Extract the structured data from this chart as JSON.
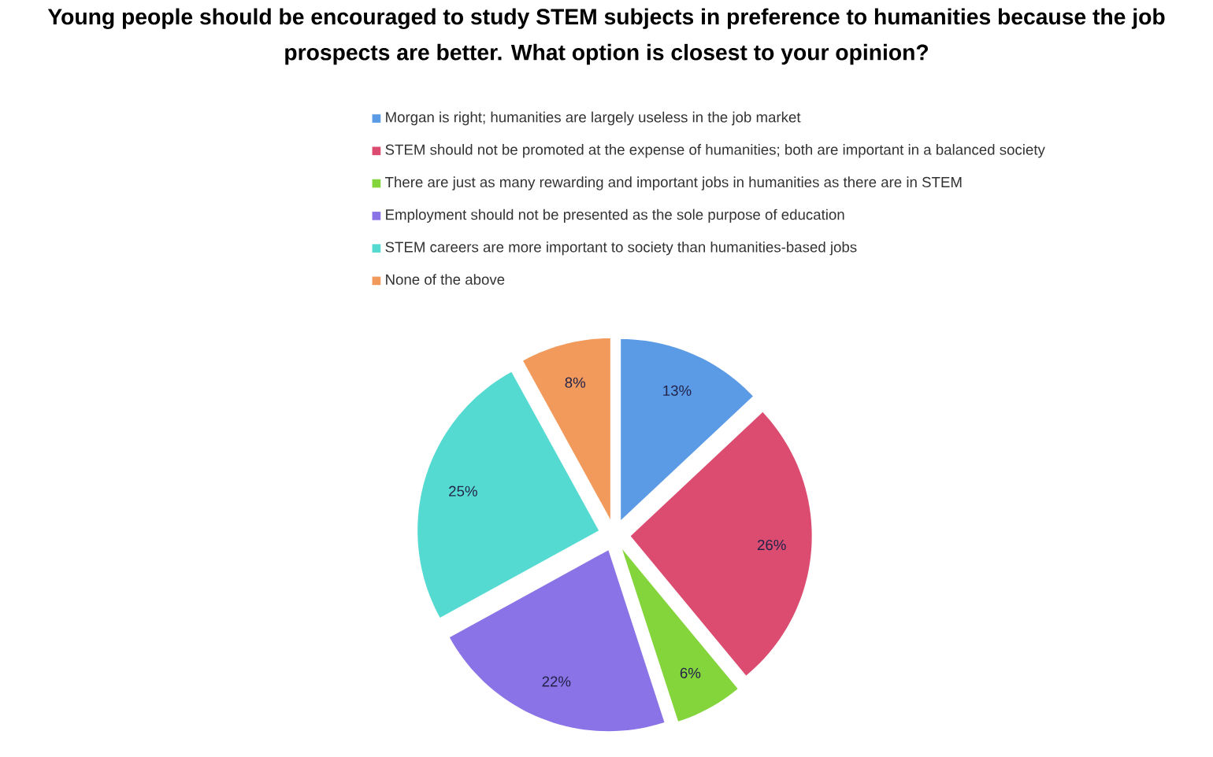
{
  "chart_data": {
    "type": "pie",
    "title": "Young people should be encouraged to study STEM subjects in preference to humanities because the job prospects are better. What option is closest to your opinion?",
    "categories": [
      "Morgan is right; humanities are largely useless in the job market",
      "STEM should not be promoted at the expense of humanities; both are important in a balanced society",
      "There are just as many rewarding and important jobs in humanities as there are in STEM",
      "Employment should not be presented as the sole purpose of education",
      "STEM careers are more important to society than humanities-based jobs",
      "None of the above"
    ],
    "values": [
      13,
      26,
      6,
      22,
      25,
      8
    ],
    "colors": [
      "#5b9be6",
      "#dc4c70",
      "#84d43c",
      "#8a73e6",
      "#55dad2",
      "#f29a5c"
    ],
    "value_labels": [
      "13%",
      "26%",
      "6%",
      "22%",
      "25%",
      "8%"
    ],
    "legend": "top"
  }
}
